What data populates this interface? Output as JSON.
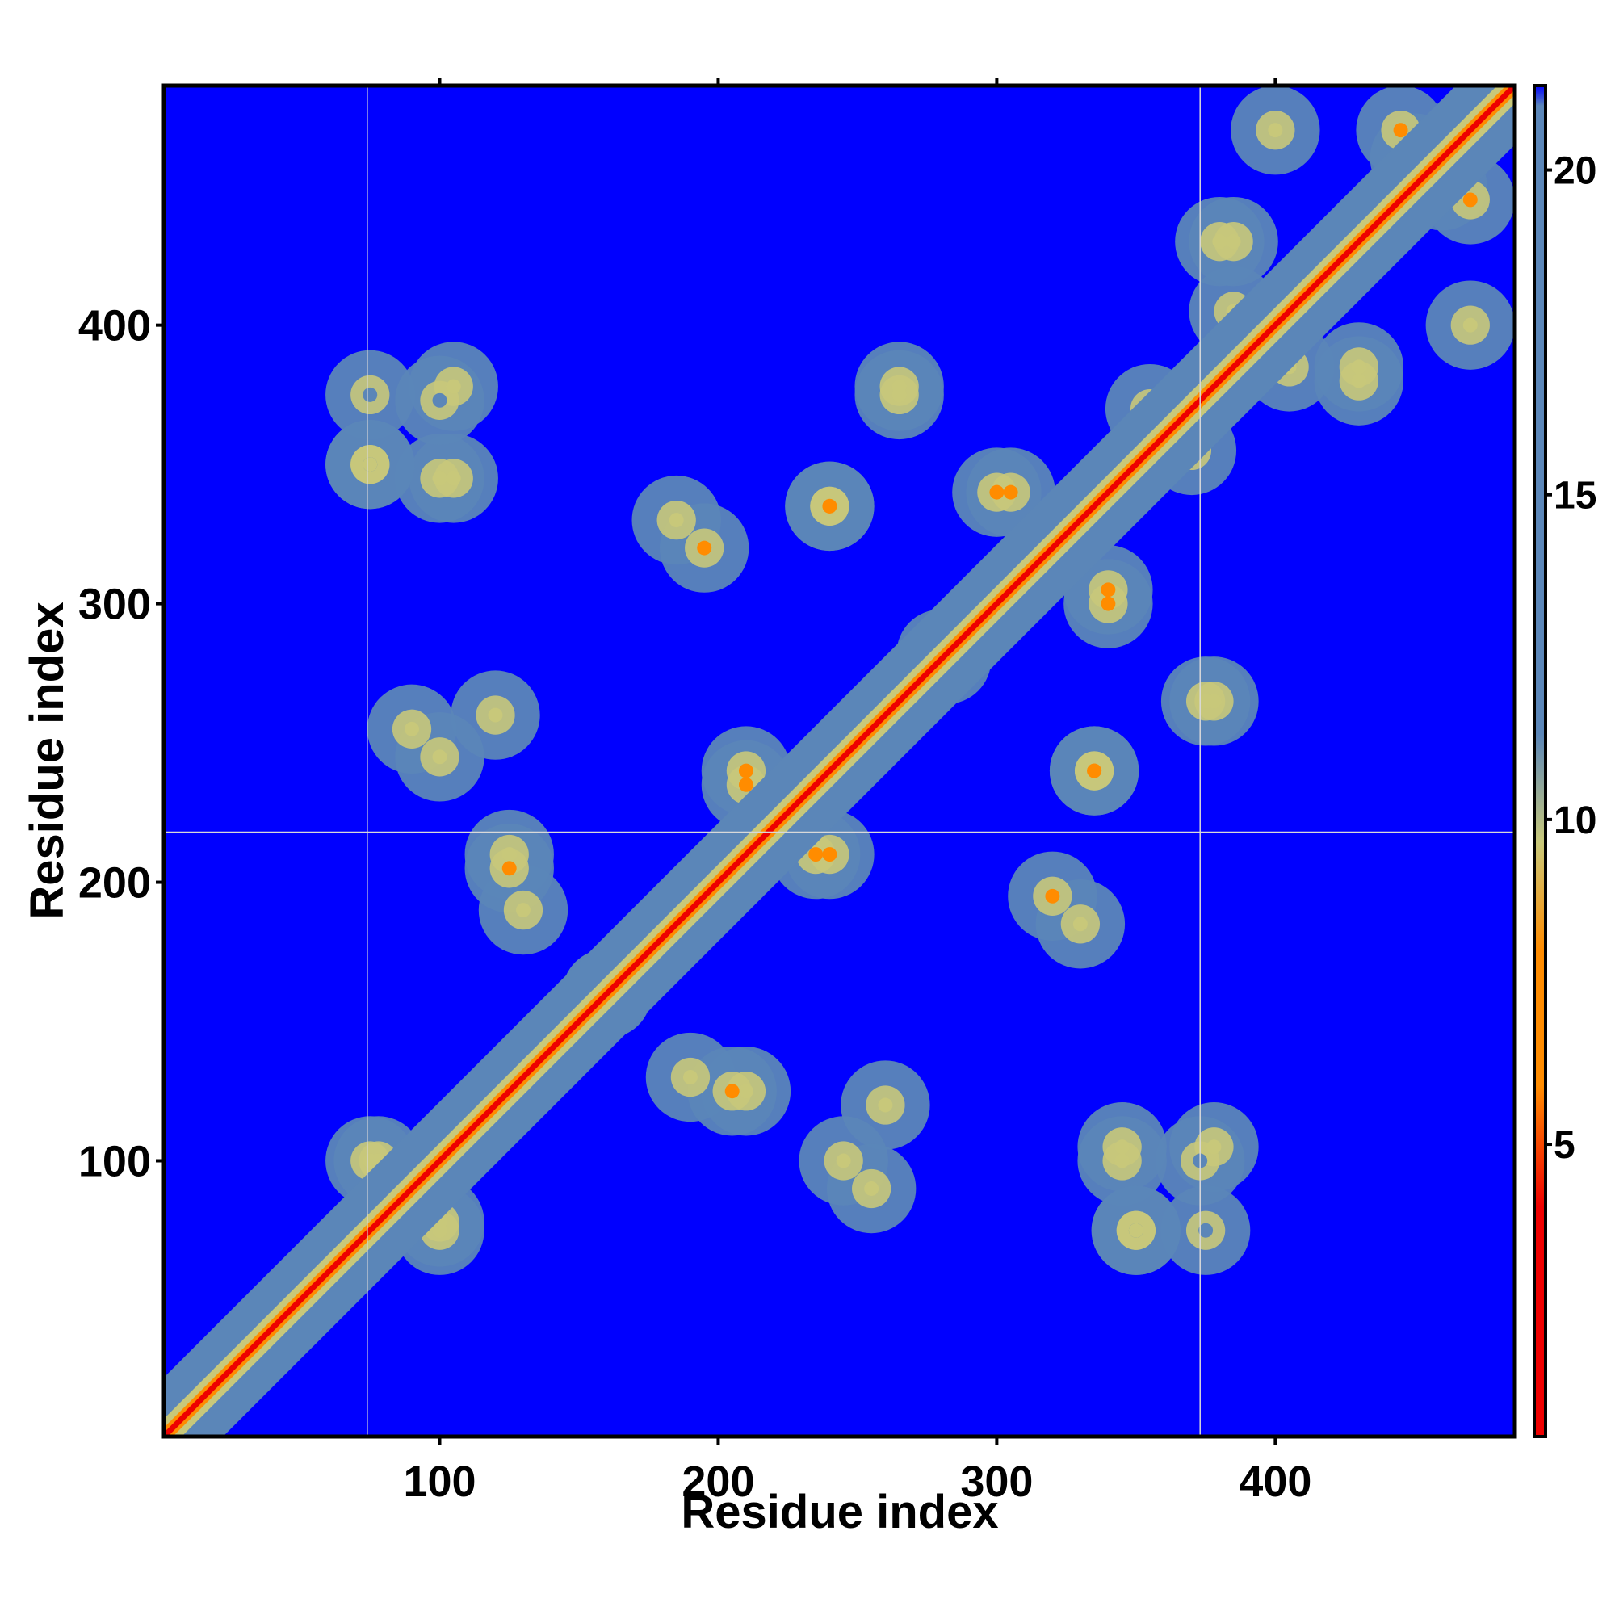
{
  "chart_data": {
    "type": "heatmap",
    "description_free": true,
    "xlabel": "Residue index",
    "ylabel": "Residue index",
    "xlim": [
      1,
      486
    ],
    "ylim": [
      1,
      486
    ],
    "x_ticks": [
      100,
      200,
      300,
      400
    ],
    "y_ticks": [
      100,
      200,
      300,
      400
    ],
    "colorbar": {
      "ticks": [
        5,
        10,
        15,
        20
      ],
      "range": [
        0.5,
        21.3
      ],
      "colors": {
        "low": "#ee0000",
        "mid_low": "#ff8c00",
        "mid": "#c8c87a",
        "high": "#5b86b8",
        "max": "#0000ff"
      }
    },
    "grid_lines": {
      "x": [
        74,
        373
      ],
      "y": [
        218
      ]
    },
    "diagonal_band": {
      "from": 1,
      "to": 486
    },
    "contact_clusters": [
      {
        "x": 75,
        "y": 100,
        "v": 11
      },
      {
        "x": 75,
        "y": 350,
        "v": 12
      },
      {
        "x": 75,
        "y": 375,
        "v": 13
      },
      {
        "x": 100,
        "y": 78,
        "v": 9
      },
      {
        "x": 105,
        "y": 345,
        "v": 10
      },
      {
        "x": 105,
        "y": 378,
        "v": 11
      },
      {
        "x": 120,
        "y": 260,
        "v": 9
      },
      {
        "x": 125,
        "y": 210,
        "v": 8
      },
      {
        "x": 160,
        "y": 160,
        "v": 10
      },
      {
        "x": 185,
        "y": 330,
        "v": 8
      },
      {
        "x": 190,
        "y": 130,
        "v": 8
      },
      {
        "x": 205,
        "y": 125,
        "v": 7
      },
      {
        "x": 210,
        "y": 240,
        "v": 6
      },
      {
        "x": 235,
        "y": 210,
        "v": 6
      },
      {
        "x": 240,
        "y": 335,
        "v": 6
      },
      {
        "x": 245,
        "y": 100,
        "v": 10
      },
      {
        "x": 255,
        "y": 90,
        "v": 11
      },
      {
        "x": 265,
        "y": 378,
        "v": 8
      },
      {
        "x": 280,
        "y": 282,
        "v": 5
      },
      {
        "x": 300,
        "y": 340,
        "v": 6
      },
      {
        "x": 320,
        "y": 195,
        "v": 7
      },
      {
        "x": 335,
        "y": 240,
        "v": 6
      },
      {
        "x": 340,
        "y": 305,
        "v": 6
      },
      {
        "x": 345,
        "y": 100,
        "v": 10
      },
      {
        "x": 350,
        "y": 75,
        "v": 11
      },
      {
        "x": 355,
        "y": 370,
        "v": 6
      },
      {
        "x": 373,
        "y": 100,
        "v": 12
      },
      {
        "x": 375,
        "y": 265,
        "v": 8
      },
      {
        "x": 380,
        "y": 430,
        "v": 8
      },
      {
        "x": 405,
        "y": 385,
        "v": 8
      },
      {
        "x": 430,
        "y": 385,
        "v": 8
      },
      {
        "x": 445,
        "y": 470,
        "v": 6
      },
      {
        "x": 460,
        "y": 450,
        "v": 6
      },
      {
        "x": 470,
        "y": 400,
        "v": 9
      }
    ],
    "grid": false,
    "legend": "colorbar-right"
  }
}
